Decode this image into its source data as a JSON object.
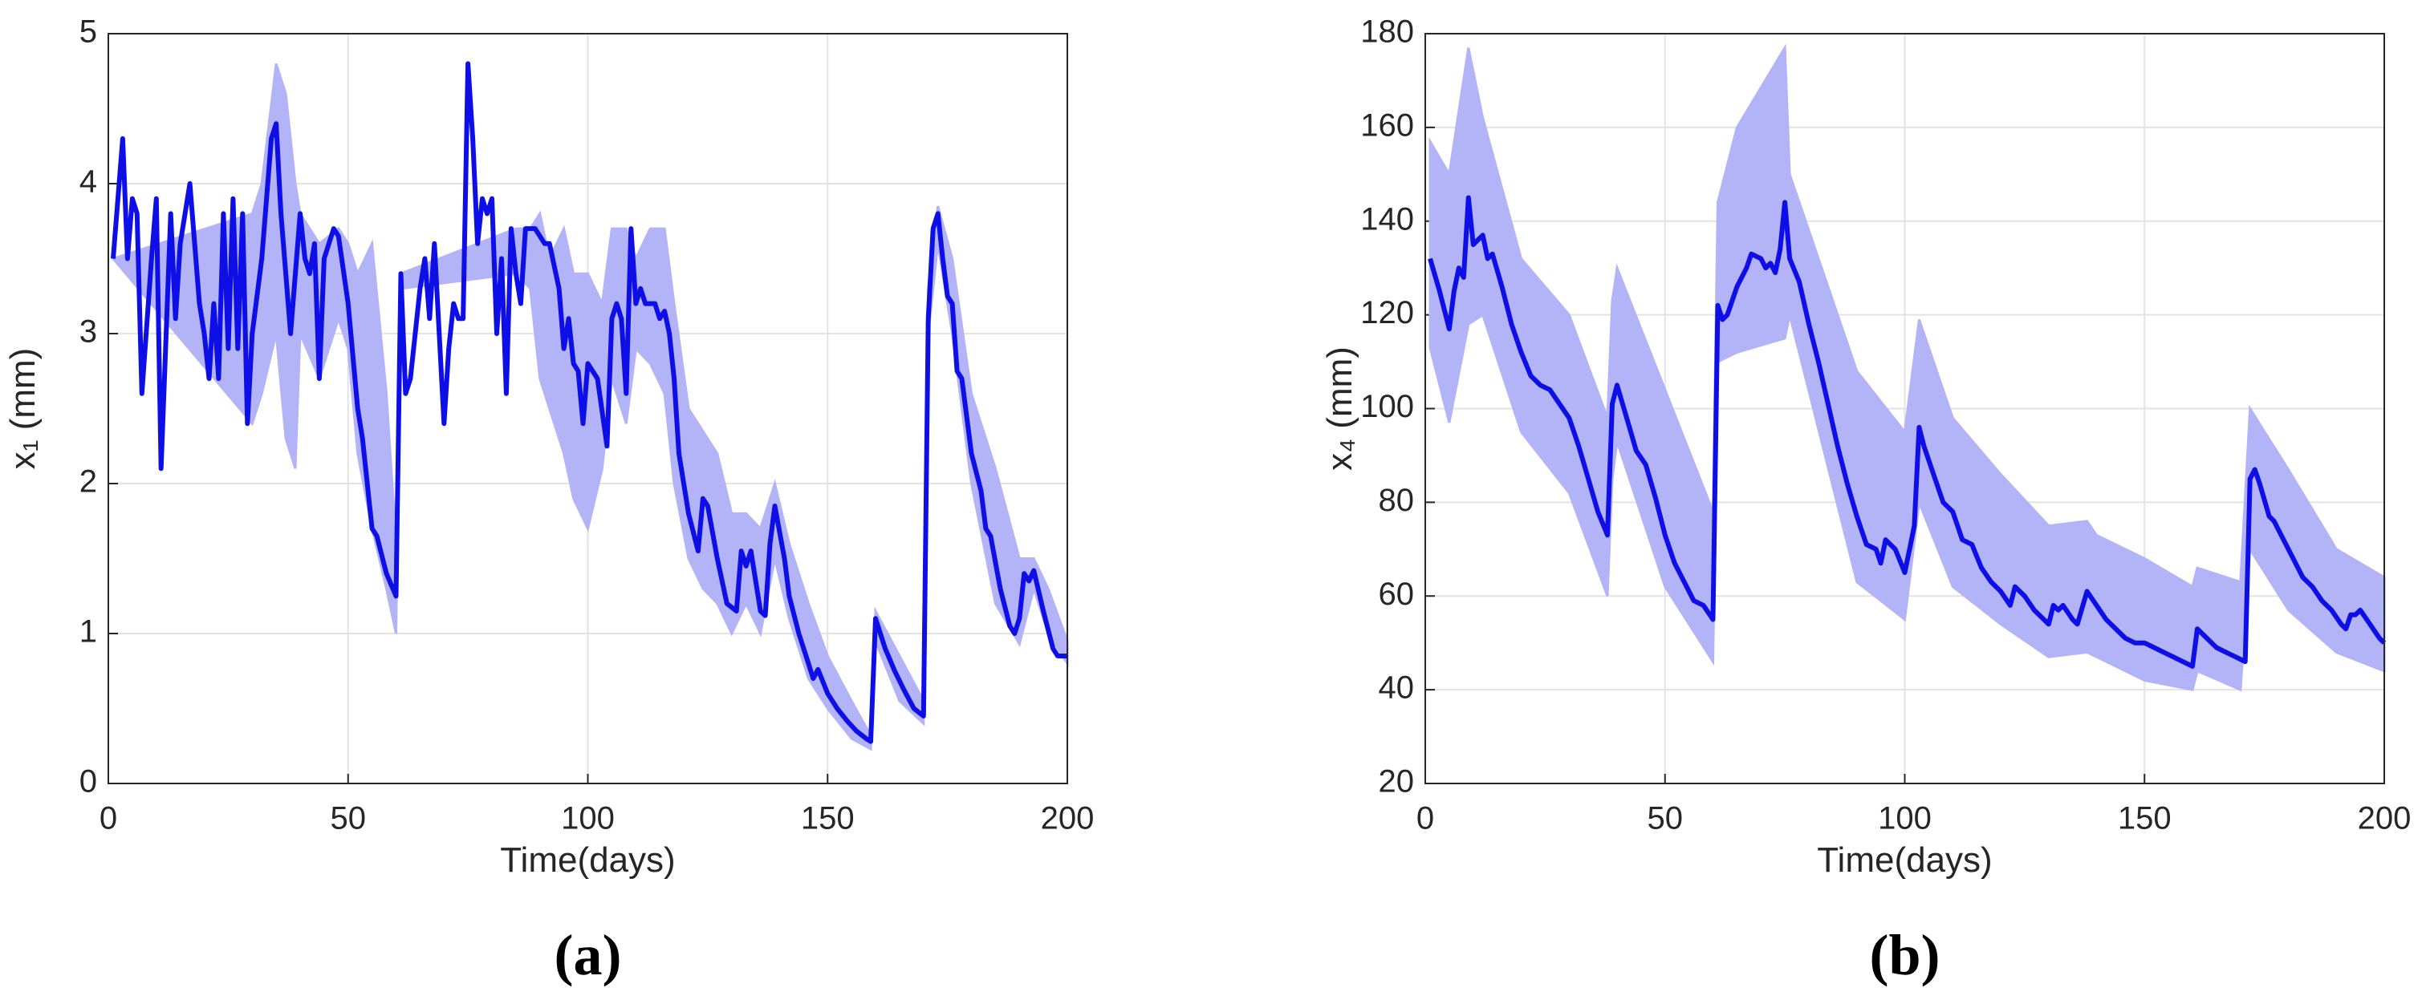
{
  "chart_data": [
    {
      "type": "line",
      "caption": "(a)",
      "xlabel": "Time(days)",
      "ylabel": "x₁ (mm)",
      "xlim": [
        0,
        200
      ],
      "xticks": [
        0,
        50,
        100,
        150,
        200
      ],
      "ylim": [
        0,
        5
      ],
      "yticks": [
        0,
        1,
        2,
        3,
        4,
        5
      ],
      "grid": true,
      "band": {
        "color": "#b3b3f7",
        "x": [
          1,
          30,
          32,
          35,
          37,
          39,
          40,
          44,
          48,
          50,
          52,
          55,
          58,
          60,
          61,
          85,
          88,
          90,
          92,
          95,
          97,
          100,
          103,
          105,
          108,
          110,
          113,
          116,
          118,
          121,
          124,
          127,
          130,
          133,
          136,
          139,
          142,
          146,
          150,
          155,
          159,
          160,
          165,
          170,
          171,
          173,
          176,
          180,
          185,
          190,
          193,
          196,
          200
        ],
        "lower": [
          3.5,
          2.4,
          2.6,
          3.0,
          2.3,
          2.1,
          3.0,
          2.7,
          3.1,
          2.9,
          2.2,
          1.7,
          1.3,
          1.0,
          3.3,
          3.4,
          3.3,
          2.7,
          2.5,
          2.2,
          1.9,
          1.7,
          2.1,
          2.7,
          2.4,
          2.9,
          2.8,
          2.6,
          2.0,
          1.5,
          1.3,
          1.2,
          1.0,
          1.2,
          1.0,
          1.5,
          1.1,
          0.7,
          0.5,
          0.3,
          0.23,
          0.95,
          0.55,
          0.4,
          3.0,
          3.6,
          3.0,
          2.0,
          1.2,
          0.93,
          1.3,
          1.0,
          0.8
        ],
        "upper": [
          3.5,
          3.8,
          4.0,
          4.8,
          4.6,
          4.0,
          3.8,
          3.6,
          3.7,
          3.6,
          3.4,
          3.6,
          2.6,
          1.6,
          3.4,
          3.7,
          3.7,
          3.8,
          3.5,
          3.7,
          3.4,
          3.4,
          3.2,
          3.7,
          3.7,
          3.5,
          3.7,
          3.7,
          3.2,
          2.5,
          2.35,
          2.2,
          1.8,
          1.8,
          1.7,
          2.0,
          1.6,
          1.2,
          0.85,
          0.55,
          0.32,
          1.15,
          0.85,
          0.55,
          3.3,
          3.85,
          3.5,
          2.6,
          2.1,
          1.5,
          1.5,
          1.3,
          0.95
        ]
      },
      "series": [
        {
          "color": "#0e0ee6",
          "x": [
            1,
            3,
            4,
            5,
            6,
            7,
            9,
            10,
            11,
            13,
            14,
            15,
            17,
            19,
            20,
            21,
            22,
            23,
            24,
            25,
            26,
            27,
            28,
            29,
            30,
            32,
            34,
            35,
            36,
            38,
            40,
            41,
            42,
            43,
            44,
            45,
            47,
            48,
            50,
            52,
            53,
            55,
            56,
            58,
            60,
            61,
            62,
            63,
            65,
            66,
            67,
            68,
            70,
            71,
            72,
            73,
            74,
            75,
            76,
            77,
            78,
            79,
            80,
            81,
            82,
            83,
            84,
            85,
            86,
            87,
            89,
            91,
            92,
            94,
            95,
            96,
            97,
            98,
            99,
            100,
            102,
            104,
            105,
            106,
            107,
            108,
            109,
            110,
            111,
            112,
            114,
            115,
            116,
            117,
            118,
            119,
            121,
            123,
            124,
            125,
            127,
            129,
            131,
            132,
            133,
            134,
            136,
            137,
            138,
            139,
            141,
            142,
            144,
            146,
            147,
            148,
            150,
            152,
            154,
            156,
            158,
            159,
            160,
            162,
            164,
            166,
            168,
            170,
            171,
            172,
            173,
            174,
            175,
            176,
            177,
            178,
            180,
            182,
            183,
            184,
            186,
            188,
            189,
            190,
            191,
            192,
            193,
            195,
            197,
            198,
            200
          ],
          "values": [
            3.5,
            4.3,
            3.5,
            3.9,
            3.8,
            2.6,
            3.5,
            3.9,
            2.1,
            3.8,
            3.1,
            3.6,
            4.0,
            3.2,
            3.0,
            2.7,
            3.2,
            2.7,
            3.8,
            2.9,
            3.9,
            2.9,
            3.8,
            2.4,
            3.0,
            3.5,
            4.3,
            4.4,
            3.8,
            3.0,
            3.8,
            3.5,
            3.4,
            3.6,
            2.7,
            3.5,
            3.7,
            3.65,
            3.2,
            2.5,
            2.3,
            1.7,
            1.65,
            1.4,
            1.25,
            3.4,
            2.6,
            2.7,
            3.3,
            3.5,
            3.1,
            3.6,
            2.4,
            2.9,
            3.2,
            3.1,
            3.1,
            4.8,
            4.3,
            3.6,
            3.9,
            3.8,
            3.9,
            3.0,
            3.5,
            2.6,
            3.7,
            3.4,
            3.2,
            3.7,
            3.7,
            3.6,
            3.6,
            3.3,
            2.9,
            3.1,
            2.8,
            2.75,
            2.4,
            2.8,
            2.7,
            2.25,
            3.1,
            3.2,
            3.1,
            2.6,
            3.7,
            3.2,
            3.3,
            3.2,
            3.2,
            3.1,
            3.15,
            3.0,
            2.7,
            2.2,
            1.8,
            1.55,
            1.9,
            1.85,
            1.5,
            1.2,
            1.15,
            1.55,
            1.45,
            1.55,
            1.15,
            1.12,
            1.6,
            1.85,
            1.5,
            1.25,
            1.0,
            0.8,
            0.7,
            0.76,
            0.6,
            0.5,
            0.42,
            0.35,
            0.3,
            0.28,
            1.1,
            0.9,
            0.75,
            0.62,
            0.5,
            0.45,
            3.1,
            3.7,
            3.8,
            3.5,
            3.25,
            3.2,
            2.75,
            2.7,
            2.2,
            1.95,
            1.7,
            1.65,
            1.3,
            1.05,
            1.0,
            1.1,
            1.4,
            1.35,
            1.42,
            1.15,
            0.9,
            0.85,
            0.85
          ]
        }
      ]
    },
    {
      "type": "line",
      "caption": "(b)",
      "xlabel": "Time(days)",
      "ylabel": "x₄ (mm)",
      "xlim": [
        0,
        200
      ],
      "xticks": [
        0,
        50,
        100,
        150,
        200
      ],
      "ylim": [
        20,
        180
      ],
      "yticks": [
        20,
        40,
        60,
        80,
        100,
        120,
        140,
        160,
        180
      ],
      "grid": true,
      "band": {
        "color": "#b3b3f7",
        "x": [
          1,
          5,
          9,
          12,
          20,
          30,
          38,
          39,
          40,
          50,
          60,
          61,
          65,
          75,
          76,
          90,
          100,
          103,
          110,
          120,
          130,
          138,
          140,
          150,
          160,
          161,
          170,
          172,
          180,
          190,
          200
        ],
        "lower": [
          113,
          97,
          118,
          120,
          95,
          82,
          60,
          85,
          93,
          62,
          46,
          110,
          112,
          115,
          120,
          63,
          55,
          80,
          62,
          54,
          47,
          48,
          47,
          42,
          40,
          44,
          40,
          70,
          57,
          48,
          44
        ],
        "upper": [
          157,
          150,
          177,
          162,
          132,
          120,
          98,
          123,
          130,
          104,
          78,
          144,
          160,
          177,
          150,
          108,
          95,
          119,
          98,
          86,
          75,
          76,
          73,
          68,
          62,
          66,
          63,
          100,
          87,
          70,
          64
        ]
      },
      "series": [
        {
          "color": "#0e0ee6",
          "x": [
            1,
            3,
            5,
            6,
            7,
            8,
            9,
            10,
            11,
            12,
            13,
            14,
            16,
            18,
            20,
            22,
            24,
            26,
            28,
            30,
            32,
            34,
            36,
            38,
            39,
            40,
            42,
            44,
            46,
            48,
            50,
            52,
            54,
            56,
            58,
            60,
            61,
            62,
            63,
            65,
            67,
            68,
            70,
            71,
            72,
            73,
            74,
            75,
            76,
            78,
            80,
            82,
            84,
            86,
            88,
            90,
            92,
            94,
            95,
            96,
            98,
            100,
            101,
            102,
            103,
            104,
            106,
            108,
            110,
            112,
            114,
            116,
            118,
            120,
            122,
            123,
            125,
            127,
            129,
            130,
            131,
            132,
            133,
            135,
            136,
            138,
            140,
            142,
            144,
            146,
            148,
            150,
            152,
            154,
            156,
            158,
            160,
            161,
            163,
            165,
            167,
            169,
            171,
            172,
            173,
            174,
            176,
            177,
            179,
            181,
            183,
            185,
            187,
            189,
            191,
            192,
            193,
            194,
            195,
            197,
            199,
            200
          ],
          "values": [
            132,
            125,
            117,
            125,
            130,
            128,
            145,
            135,
            136,
            137,
            132,
            133,
            126,
            118,
            112,
            107,
            105,
            104,
            101,
            98,
            92,
            85,
            78,
            73,
            101,
            105,
            98,
            91,
            88,
            81,
            73,
            67,
            63,
            59,
            58,
            55,
            122,
            119,
            120,
            126,
            130,
            133,
            132,
            130,
            131,
            129,
            134,
            144,
            132,
            127,
            118,
            110,
            101,
            92,
            84,
            77,
            71,
            70,
            67,
            72,
            70,
            65,
            70,
            75,
            96,
            92,
            86,
            80,
            78,
            72,
            71,
            66,
            63,
            61,
            58,
            62,
            60,
            57,
            55,
            54,
            58,
            57,
            58,
            55,
            54,
            61,
            58,
            55,
            53,
            51,
            50,
            50,
            49,
            48,
            47,
            46,
            45,
            53,
            51,
            49,
            48,
            47,
            46,
            85,
            87,
            84,
            77,
            76,
            72,
            68,
            64,
            62,
            59,
            57,
            54,
            53,
            56,
            56,
            57,
            54,
            51,
            50
          ]
        }
      ]
    }
  ]
}
